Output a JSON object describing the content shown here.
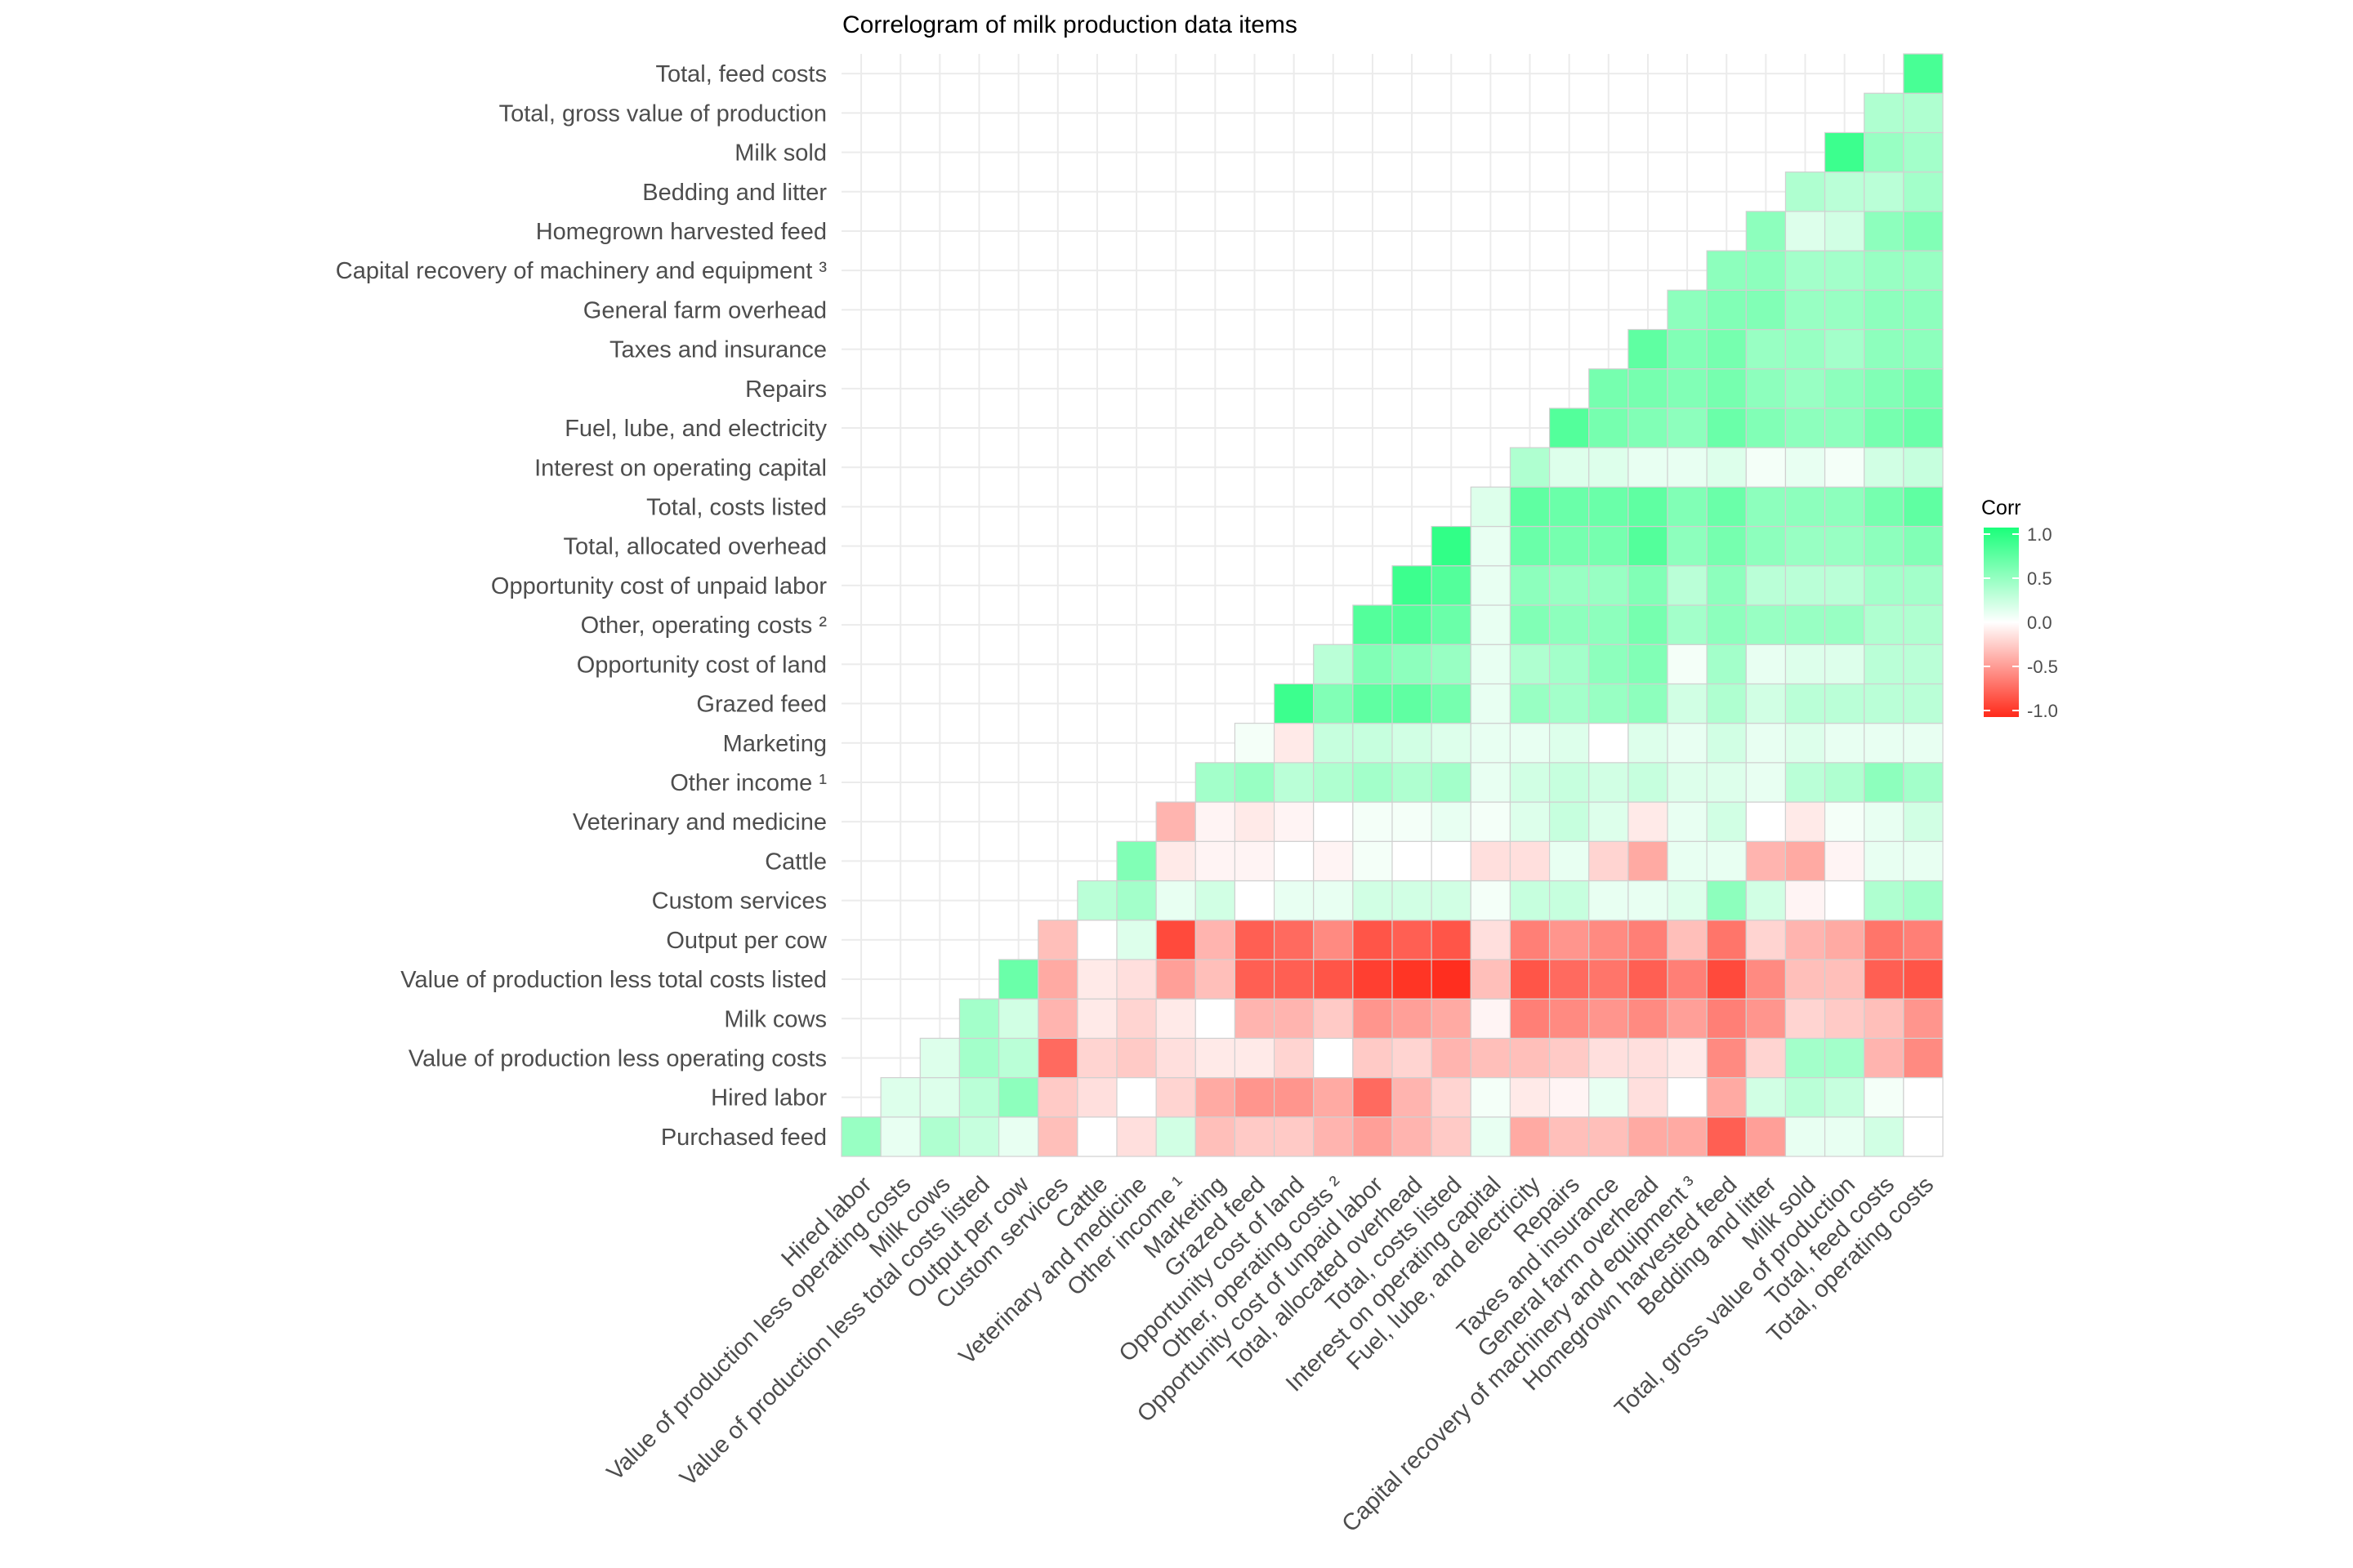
{
  "chart_data": {
    "type": "heatmap",
    "title": "Correlogram of milk production data items",
    "legend": {
      "title": "Corr",
      "ticks": [
        "1.0",
        "0.5",
        "0.0",
        "-0.5",
        "-1.0"
      ],
      "placement": "right",
      "range": [
        -1,
        1
      ],
      "low_color": "#FF2A1A",
      "mid_color": "#FFFFFF",
      "high_color": "#1AFF7A"
    },
    "grid": true,
    "x_labels": [
      "Hired labor",
      "Value of production less operating costs",
      "Milk cows",
      "Value of production less total costs listed",
      "Output per cow",
      "Custom services",
      "Cattle",
      "Veterinary and medicine",
      "Other income ¹",
      "Marketing",
      "Grazed feed",
      "Opportunity cost of land",
      "Other, operating costs ²",
      "Opportunity cost of unpaid labor",
      "Total, allocated overhead",
      "Total, costs listed",
      "Interest on operating capital",
      "Fuel, lube, and electricity",
      "Repairs",
      "Taxes and insurance",
      "General farm overhead",
      "Capital recovery of machinery and equipment ³",
      "Homegrown harvested feed",
      "Bedding and litter",
      "Milk sold",
      "Total, gross value of production",
      "Total, feed costs",
      "Total, operating costs"
    ],
    "y_labels": [
      "Purchased feed",
      "Hired labor",
      "Value of production less operating costs",
      "Milk cows",
      "Value of production less total costs listed",
      "Output per cow",
      "Custom services",
      "Cattle",
      "Veterinary and medicine",
      "Other income ¹",
      "Marketing",
      "Grazed feed",
      "Opportunity cost of land",
      "Other, operating costs ²",
      "Opportunity cost of unpaid labor",
      "Total, allocated overhead",
      "Total, costs listed",
      "Interest on operating capital",
      "Fuel, lube, and electricity",
      "Repairs",
      "Taxes and insurance",
      "General farm overhead",
      "Capital recovery of machinery and equipment ³",
      "Homegrown harvested feed",
      "Bedding and litter",
      "Milk sold",
      "Total, gross value of production",
      "Total, feed costs"
    ],
    "values": [
      [
        0.45,
        0.1,
        0.35,
        0.25,
        0.1,
        -0.3,
        0.0,
        -0.15,
        0.2,
        -0.3,
        -0.25,
        -0.25,
        -0.35,
        -0.45,
        -0.35,
        -0.25,
        0.1,
        -0.4,
        -0.3,
        -0.3,
        -0.4,
        -0.4,
        -0.75,
        -0.45,
        0.1,
        0.1,
        0.2,
        0.0
      ],
      [
        null,
        0.15,
        0.15,
        0.3,
        0.5,
        -0.25,
        -0.15,
        0.0,
        -0.2,
        -0.4,
        -0.5,
        -0.5,
        -0.4,
        -0.7,
        -0.35,
        -0.2,
        0.05,
        -0.1,
        -0.05,
        0.1,
        -0.15,
        0.0,
        -0.4,
        0.2,
        0.3,
        0.25,
        0.05,
        0.0
      ],
      [
        null,
        null,
        0.15,
        0.4,
        0.3,
        -0.7,
        -0.2,
        -0.25,
        -0.15,
        -0.1,
        -0.1,
        -0.2,
        0.0,
        -0.25,
        -0.2,
        -0.35,
        -0.3,
        -0.3,
        -0.25,
        -0.15,
        -0.15,
        -0.1,
        -0.55,
        -0.2,
        0.4,
        0.4,
        -0.35,
        -0.55
      ],
      [
        null,
        null,
        null,
        0.4,
        0.2,
        -0.35,
        -0.1,
        -0.2,
        -0.1,
        0.0,
        -0.35,
        -0.35,
        -0.25,
        -0.5,
        -0.45,
        -0.4,
        -0.05,
        -0.6,
        -0.55,
        -0.5,
        -0.55,
        -0.45,
        -0.6,
        -0.5,
        -0.2,
        -0.25,
        -0.3,
        -0.5
      ],
      [
        null,
        null,
        null,
        null,
        0.65,
        -0.4,
        -0.1,
        -0.15,
        -0.45,
        -0.3,
        -0.75,
        -0.75,
        -0.8,
        -0.9,
        -0.95,
        -0.98,
        -0.3,
        -0.8,
        -0.7,
        -0.65,
        -0.75,
        -0.6,
        -0.85,
        -0.55,
        -0.3,
        -0.3,
        -0.75,
        -0.8
      ],
      [
        null,
        null,
        null,
        null,
        null,
        -0.3,
        0.0,
        0.15,
        -0.85,
        -0.35,
        -0.75,
        -0.7,
        -0.55,
        -0.8,
        -0.75,
        -0.8,
        -0.15,
        -0.6,
        -0.5,
        -0.55,
        -0.6,
        -0.3,
        -0.65,
        -0.2,
        -0.35,
        -0.4,
        -0.65,
        -0.6
      ],
      [
        null,
        null,
        null,
        null,
        null,
        null,
        0.3,
        0.4,
        0.1,
        0.2,
        0.0,
        0.1,
        0.1,
        0.2,
        0.2,
        0.2,
        0.05,
        0.25,
        0.25,
        0.1,
        0.1,
        0.15,
        0.5,
        0.2,
        -0.05,
        0.0,
        0.35,
        0.4
      ],
      [
        null,
        null,
        null,
        null,
        null,
        null,
        null,
        0.55,
        -0.1,
        -0.05,
        -0.05,
        0.0,
        -0.05,
        0.05,
        0.0,
        0.0,
        -0.15,
        -0.15,
        0.1,
        -0.2,
        -0.4,
        0.1,
        0.1,
        -0.35,
        -0.4,
        -0.05,
        0.1,
        0.1
      ],
      [
        null,
        null,
        null,
        null,
        null,
        null,
        null,
        null,
        -0.35,
        -0.05,
        -0.1,
        -0.05,
        0.0,
        0.05,
        0.05,
        0.1,
        0.05,
        0.15,
        0.25,
        0.15,
        -0.1,
        0.1,
        0.2,
        0.0,
        -0.1,
        0.05,
        0.1,
        0.2
      ],
      [
        null,
        null,
        null,
        null,
        null,
        null,
        null,
        null,
        null,
        0.4,
        0.45,
        0.3,
        0.35,
        0.4,
        0.35,
        0.4,
        0.1,
        0.2,
        0.25,
        0.2,
        0.25,
        0.15,
        0.15,
        0.1,
        0.3,
        0.35,
        0.5,
        0.4
      ],
      [
        null,
        null,
        null,
        null,
        null,
        null,
        null,
        null,
        null,
        null,
        0.05,
        -0.1,
        0.25,
        0.25,
        0.2,
        0.15,
        0.1,
        0.1,
        0.15,
        0.0,
        0.15,
        0.1,
        0.2,
        0.1,
        0.15,
        0.1,
        0.1,
        0.1
      ],
      [
        null,
        null,
        null,
        null,
        null,
        null,
        null,
        null,
        null,
        null,
        null,
        0.85,
        0.55,
        0.7,
        0.7,
        0.6,
        0.1,
        0.45,
        0.4,
        0.45,
        0.5,
        0.2,
        0.35,
        0.2,
        0.3,
        0.3,
        0.3,
        0.3
      ],
      [
        null,
        null,
        null,
        null,
        null,
        null,
        null,
        null,
        null,
        null,
        null,
        null,
        0.3,
        0.55,
        0.5,
        0.45,
        0.1,
        0.35,
        0.4,
        0.5,
        0.55,
        0.05,
        0.4,
        0.1,
        0.15,
        0.15,
        0.3,
        0.3
      ],
      [
        null,
        null,
        null,
        null,
        null,
        null,
        null,
        null,
        null,
        null,
        null,
        null,
        null,
        0.75,
        0.75,
        0.65,
        0.1,
        0.55,
        0.5,
        0.5,
        0.6,
        0.4,
        0.5,
        0.45,
        0.45,
        0.45,
        0.35,
        0.35
      ],
      [
        null,
        null,
        null,
        null,
        null,
        null,
        null,
        null,
        null,
        null,
        null,
        null,
        null,
        null,
        0.85,
        0.75,
        0.1,
        0.5,
        0.45,
        0.45,
        0.55,
        0.3,
        0.5,
        0.3,
        0.3,
        0.3,
        0.4,
        0.4
      ],
      [
        null,
        null,
        null,
        null,
        null,
        null,
        null,
        null,
        null,
        null,
        null,
        null,
        null,
        null,
        null,
        0.9,
        0.1,
        0.65,
        0.6,
        0.6,
        0.75,
        0.5,
        0.6,
        0.5,
        0.45,
        0.45,
        0.5,
        0.55
      ],
      [
        null,
        null,
        null,
        null,
        null,
        null,
        null,
        null,
        null,
        null,
        null,
        null,
        null,
        null,
        null,
        null,
        0.15,
        0.7,
        0.65,
        0.65,
        0.7,
        0.55,
        0.65,
        0.5,
        0.5,
        0.5,
        0.6,
        0.7
      ],
      [
        null,
        null,
        null,
        null,
        null,
        null,
        null,
        null,
        null,
        null,
        null,
        null,
        null,
        null,
        null,
        null,
        null,
        0.35,
        0.15,
        0.15,
        0.1,
        0.1,
        0.15,
        0.05,
        0.1,
        0.05,
        0.2,
        0.25
      ],
      [
        null,
        null,
        null,
        null,
        null,
        null,
        null,
        null,
        null,
        null,
        null,
        null,
        null,
        null,
        null,
        null,
        null,
        null,
        0.75,
        0.6,
        0.55,
        0.5,
        0.65,
        0.55,
        0.5,
        0.5,
        0.6,
        0.65
      ],
      [
        null,
        null,
        null,
        null,
        null,
        null,
        null,
        null,
        null,
        null,
        null,
        null,
        null,
        null,
        null,
        null,
        null,
        null,
        null,
        0.6,
        0.6,
        0.55,
        0.6,
        0.5,
        0.45,
        0.5,
        0.55,
        0.6
      ],
      [
        null,
        null,
        null,
        null,
        null,
        null,
        null,
        null,
        null,
        null,
        null,
        null,
        null,
        null,
        null,
        null,
        null,
        null,
        null,
        null,
        0.7,
        0.55,
        0.6,
        0.45,
        0.45,
        0.4,
        0.5,
        0.5
      ],
      [
        null,
        null,
        null,
        null,
        null,
        null,
        null,
        null,
        null,
        null,
        null,
        null,
        null,
        null,
        null,
        null,
        null,
        null,
        null,
        null,
        null,
        0.5,
        0.55,
        0.55,
        0.45,
        0.45,
        0.5,
        0.5
      ],
      [
        null,
        null,
        null,
        null,
        null,
        null,
        null,
        null,
        null,
        null,
        null,
        null,
        null,
        null,
        null,
        null,
        null,
        null,
        null,
        null,
        null,
        null,
        0.5,
        0.5,
        0.4,
        0.4,
        0.45,
        0.45
      ],
      [
        null,
        null,
        null,
        null,
        null,
        null,
        null,
        null,
        null,
        null,
        null,
        null,
        null,
        null,
        null,
        null,
        null,
        null,
        null,
        null,
        null,
        null,
        null,
        0.5,
        0.15,
        0.2,
        0.5,
        0.55
      ],
      [
        null,
        null,
        null,
        null,
        null,
        null,
        null,
        null,
        null,
        null,
        null,
        null,
        null,
        null,
        null,
        null,
        null,
        null,
        null,
        null,
        null,
        null,
        null,
        null,
        0.35,
        0.3,
        0.3,
        0.4
      ],
      [
        null,
        null,
        null,
        null,
        null,
        null,
        null,
        null,
        null,
        null,
        null,
        null,
        null,
        null,
        null,
        null,
        null,
        null,
        null,
        null,
        null,
        null,
        null,
        null,
        null,
        0.85,
        0.45,
        0.4
      ],
      [
        null,
        null,
        null,
        null,
        null,
        null,
        null,
        null,
        null,
        null,
        null,
        null,
        null,
        null,
        null,
        null,
        null,
        null,
        null,
        null,
        null,
        null,
        null,
        null,
        null,
        null,
        0.35,
        0.35
      ],
      [
        null,
        null,
        null,
        null,
        null,
        null,
        null,
        null,
        null,
        null,
        null,
        null,
        null,
        null,
        null,
        null,
        null,
        null,
        null,
        null,
        null,
        null,
        null,
        null,
        null,
        null,
        null,
        0.8
      ]
    ]
  }
}
